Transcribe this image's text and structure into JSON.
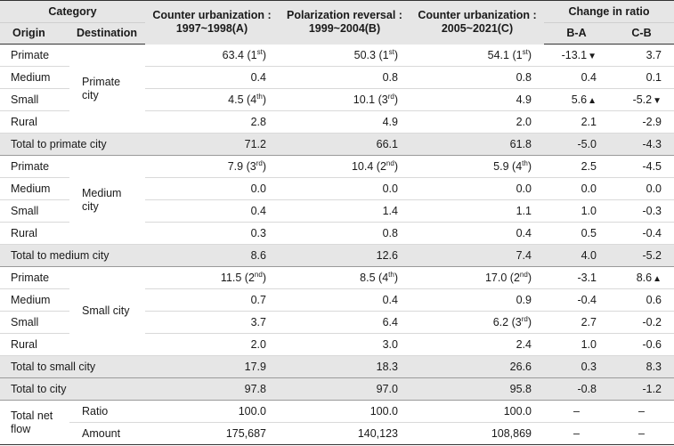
{
  "header": {
    "category": "Category",
    "origin": "Origin",
    "destination": "Destination",
    "periods": [
      {
        "line1": "Counter urbanization :",
        "line2": "1997~1998(A)"
      },
      {
        "line1": "Polarization reversal :",
        "line2": "1999~2004(B)"
      },
      {
        "line1": "Counter urbanization :",
        "line2": "2005~2021(C)"
      }
    ],
    "change": "Change in ratio",
    "ba": "B-A",
    "cb": "C-B"
  },
  "groups": [
    {
      "destination": "Primate city",
      "rows": [
        {
          "origin": "Primate",
          "a": "63.4",
          "a_rank": "1",
          "a_sup": "st",
          "b": "50.3",
          "b_rank": "1",
          "b_sup": "st",
          "c": "54.1",
          "c_rank": "1",
          "c_sup": "st",
          "ba": "-13.1",
          "ba_mark": "▼",
          "cb": "3.7",
          "cb_mark": ""
        },
        {
          "origin": "Medium",
          "a": "0.4",
          "b": "0.8",
          "c": "0.8",
          "ba": "0.4",
          "ba_mark": "",
          "cb": "0.1",
          "cb_mark": ""
        },
        {
          "origin": "Small",
          "a": "4.5",
          "a_rank": "4",
          "a_sup": "th",
          "b": "10.1",
          "b_rank": "3",
          "b_sup": "rd",
          "c": "4.9",
          "ba": "5.6",
          "ba_mark": "▲",
          "cb": "-5.2",
          "cb_mark": "▼"
        },
        {
          "origin": "Rural",
          "a": "2.8",
          "b": "4.9",
          "c": "2.0",
          "ba": "2.1",
          "ba_mark": "",
          "cb": "-2.9",
          "cb_mark": ""
        }
      ],
      "total": {
        "label": "Total to primate city",
        "a": "71.2",
        "b": "66.1",
        "c": "61.8",
        "ba": "-5.0",
        "cb": "-4.3"
      }
    },
    {
      "destination": "Medium city",
      "rows": [
        {
          "origin": "Primate",
          "a": "7.9",
          "a_rank": "3",
          "a_sup": "rd",
          "b": "10.4",
          "b_rank": "2",
          "b_sup": "nd",
          "c": "5.9",
          "c_rank": "4",
          "c_sup": "th",
          "ba": "2.5",
          "ba_mark": "",
          "cb": "-4.5",
          "cb_mark": ""
        },
        {
          "origin": "Medium",
          "a": "0.0",
          "b": "0.0",
          "c": "0.0",
          "ba": "0.0",
          "ba_mark": "",
          "cb": "0.0",
          "cb_mark": ""
        },
        {
          "origin": "Small",
          "a": "0.4",
          "b": "1.4",
          "c": "1.1",
          "ba": "1.0",
          "ba_mark": "",
          "cb": "-0.3",
          "cb_mark": ""
        },
        {
          "origin": "Rural",
          "a": "0.3",
          "b": "0.8",
          "c": "0.4",
          "ba": "0.5",
          "ba_mark": "",
          "cb": "-0.4",
          "cb_mark": ""
        }
      ],
      "total": {
        "label": "Total to medium city",
        "a": "8.6",
        "b": "12.6",
        "c": "7.4",
        "ba": "4.0",
        "cb": "-5.2"
      }
    },
    {
      "destination": "Small city",
      "rows": [
        {
          "origin": "Primate",
          "a": "11.5",
          "a_rank": "2",
          "a_sup": "nd",
          "b": "8.5",
          "b_rank": "4",
          "b_sup": "th",
          "c": "17.0",
          "c_rank": "2",
          "c_sup": "nd",
          "ba": "-3.1",
          "ba_mark": "",
          "cb": "8.6",
          "cb_mark": "▲"
        },
        {
          "origin": "Medium",
          "a": "0.7",
          "b": "0.4",
          "c": "0.9",
          "ba": "-0.4",
          "ba_mark": "",
          "cb": "0.6",
          "cb_mark": ""
        },
        {
          "origin": "Small",
          "a": "3.7",
          "b": "6.4",
          "c": "6.2",
          "c_rank": "3",
          "c_sup": "rd",
          "ba": "2.7",
          "ba_mark": "",
          "cb": "-0.2",
          "cb_mark": ""
        },
        {
          "origin": "Rural",
          "a": "2.0",
          "b": "3.0",
          "c": "2.4",
          "ba": "1.0",
          "ba_mark": "",
          "cb": "-0.6",
          "cb_mark": ""
        }
      ],
      "total": {
        "label": "Total to small city",
        "a": "17.9",
        "b": "18.3",
        "c": "26.6",
        "ba": "0.3",
        "cb": "8.3"
      }
    }
  ],
  "total_city": {
    "label": "Total to city",
    "a": "97.8",
    "b": "97.0",
    "c": "95.8",
    "ba": "-0.8",
    "cb": "-1.2"
  },
  "net_flow": {
    "label": "Total net flow",
    "ratio_label": "Ratio",
    "ratio": {
      "a": "100.0",
      "b": "100.0",
      "c": "100.0",
      "ba": "–",
      "cb": "–"
    },
    "amount_label": "Amount",
    "amount": {
      "a": "175,687",
      "b": "140,123",
      "c": "108,869",
      "ba": "–",
      "cb": "–"
    }
  }
}
